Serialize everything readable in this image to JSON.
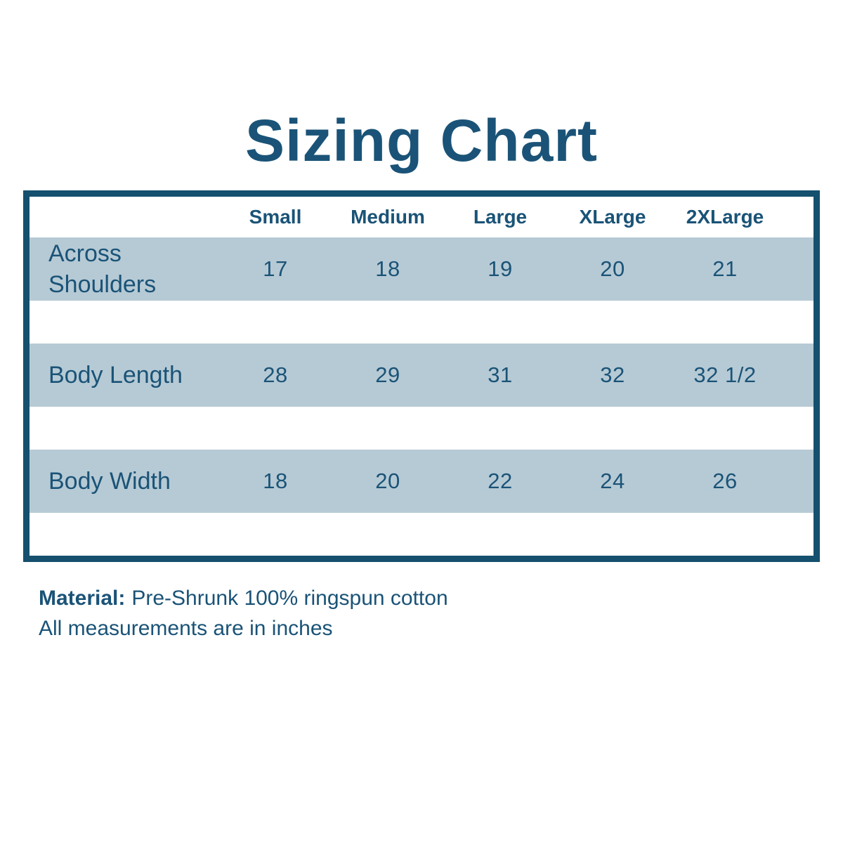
{
  "colors": {
    "navy": "#1a5377",
    "border_navy": "#15506e",
    "row_blue": "#b6cad5",
    "background": "#ffffff"
  },
  "chart_data": {
    "type": "table",
    "title": "Sizing Chart",
    "columns": [
      "",
      "Small",
      "Medium",
      "Large",
      "XLarge",
      "2XLarge"
    ],
    "rows": [
      [
        "Across Shoulders",
        "17",
        "18",
        "19",
        "20",
        "21"
      ],
      [
        "Body Length",
        "28",
        "29",
        "31",
        "32",
        "32 1/2"
      ],
      [
        "Body Width",
        "18",
        "20",
        "22",
        "24",
        "26"
      ]
    ],
    "units": "inches"
  },
  "footer": {
    "material_label": "Material:",
    "material_value": "Pre-Shrunk 100% ringspun cotton",
    "note": "All measurements are in inches"
  }
}
